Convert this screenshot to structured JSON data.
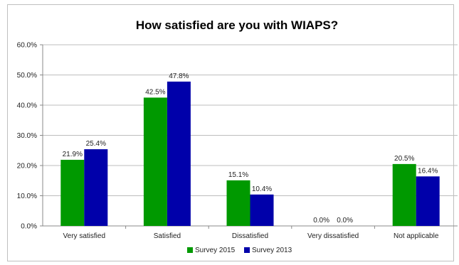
{
  "chart_data": {
    "type": "bar",
    "title": "How satisfied are you with WIAPS?",
    "categories": [
      "Very satisfied",
      "Satisfied",
      "Dissatisfied",
      "Very dissatisfied",
      "Not applicable"
    ],
    "series": [
      {
        "name": "Survey  2015",
        "values": [
          21.9,
          42.5,
          15.1,
          0.0,
          20.5
        ],
        "labels": [
          "21.9%",
          "42.5%",
          "15.1%",
          "0.0%",
          "20.5%"
        ],
        "color": "#009900"
      },
      {
        "name": "Survey 2013",
        "values": [
          25.4,
          47.8,
          10.4,
          0.0,
          16.4
        ],
        "labels": [
          "25.4%",
          "47.8%",
          "10.4%",
          "0.0%",
          "16.4%"
        ],
        "color": "#0000aa"
      }
    ],
    "yticks": [
      "0.0%",
      "10.0%",
      "20.0%",
      "30.0%",
      "40.0%",
      "50.0%",
      "60.0%"
    ],
    "ylim": [
      0,
      60
    ],
    "grid": true,
    "legend": "bottom"
  }
}
